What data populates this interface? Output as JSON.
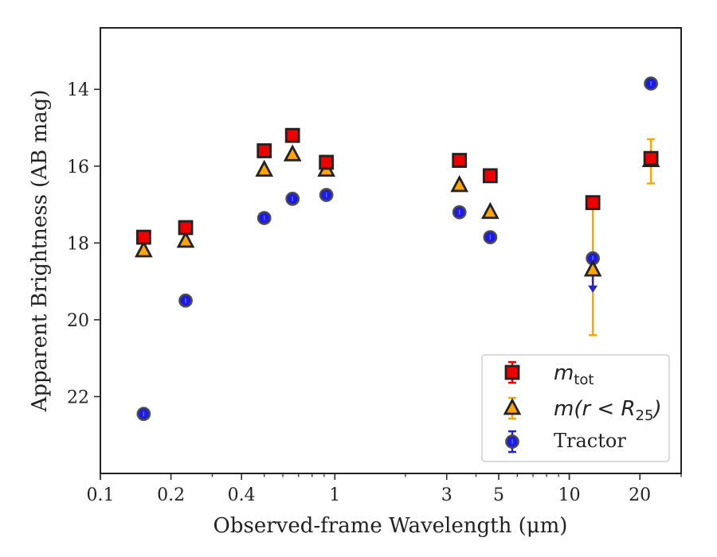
{
  "chart_data": {
    "type": "scatter",
    "xscale": "log",
    "xlim": [
      0.1,
      30
    ],
    "ylim": [
      24,
      12.4
    ],
    "y_inverted": true,
    "grid": false,
    "xlabel": "Observed-frame Wavelength (μm)",
    "ylabel": "Apparent Brightness (AB mag)",
    "x_ticks": [
      {
        "value": 0.1,
        "label": "0.1"
      },
      {
        "value": 0.2,
        "label": "0.2"
      },
      {
        "value": 0.4,
        "label": "0.4"
      },
      {
        "value": 1,
        "label": "1"
      },
      {
        "value": 3,
        "label": "3"
      },
      {
        "value": 5,
        "label": "5"
      },
      {
        "value": 10,
        "label": "10"
      },
      {
        "value": 20,
        "label": "20"
      }
    ],
    "y_ticks": [
      {
        "value": 14,
        "label": "14"
      },
      {
        "value": 16,
        "label": "16"
      },
      {
        "value": 18,
        "label": "18"
      },
      {
        "value": 20,
        "label": "20"
      },
      {
        "value": 22,
        "label": "22"
      }
    ],
    "legend_position": "bottom-right",
    "series": [
      {
        "name": "m_tot",
        "legend_main": "m",
        "legend_sub": "tot",
        "marker": "square",
        "color": "#ee0000",
        "edge_color": "#222222",
        "error_color": "#ee0000",
        "points": [
          {
            "x": 0.153,
            "y": 17.85
          },
          {
            "x": 0.231,
            "y": 17.6
          },
          {
            "x": 0.5,
            "y": 15.6
          },
          {
            "x": 0.66,
            "y": 15.2
          },
          {
            "x": 0.92,
            "y": 15.9
          },
          {
            "x": 3.4,
            "y": 15.85
          },
          {
            "x": 4.6,
            "y": 16.25
          },
          {
            "x": 12.6,
            "y": 16.95
          },
          {
            "x": 22.3,
            "y": 15.8
          }
        ]
      },
      {
        "name": "m(r < R_25)",
        "legend_main": "m(r < R",
        "legend_sub": "25",
        "legend_close": ")",
        "marker": "triangle",
        "color": "#ffa500",
        "edge_color": "#222222",
        "error_color": "#ffa500",
        "points": [
          {
            "x": 0.153,
            "y": 18.2
          },
          {
            "x": 0.231,
            "y": 17.95
          },
          {
            "x": 0.5,
            "y": 16.1
          },
          {
            "x": 0.66,
            "y": 15.7
          },
          {
            "x": 0.92,
            "y": 16.1
          },
          {
            "x": 3.4,
            "y": 16.5
          },
          {
            "x": 4.6,
            "y": 17.2
          },
          {
            "x": 12.6,
            "y": 18.7,
            "yerr": 1.7,
            "err_center": 18.7
          },
          {
            "x": 22.3,
            "y": 15.85,
            "err_low": 15.3,
            "err_high": 16.45
          }
        ]
      },
      {
        "name": "Tractor",
        "legend_main": "Tractor",
        "marker": "circle",
        "color": "#1a1aee",
        "edge_color": "#444444",
        "error_color": "#2222dd",
        "points": [
          {
            "x": 0.153,
            "y": 22.45
          },
          {
            "x": 0.231,
            "y": 19.5
          },
          {
            "x": 0.5,
            "y": 17.35
          },
          {
            "x": 0.66,
            "y": 16.85
          },
          {
            "x": 0.92,
            "y": 16.75
          },
          {
            "x": 3.4,
            "y": 17.2
          },
          {
            "x": 4.6,
            "y": 17.85
          },
          {
            "x": 12.6,
            "y": 18.4,
            "upper_limit": true,
            "limit_to": 19.25
          },
          {
            "x": 22.3,
            "y": 13.85
          }
        ]
      }
    ]
  }
}
